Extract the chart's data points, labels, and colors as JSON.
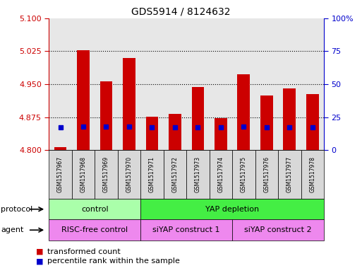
{
  "title": "GDS5914 / 8124632",
  "samples": [
    "GSM1517967",
    "GSM1517968",
    "GSM1517969",
    "GSM1517970",
    "GSM1517971",
    "GSM1517972",
    "GSM1517973",
    "GSM1517974",
    "GSM1517975",
    "GSM1517976",
    "GSM1517977",
    "GSM1517978"
  ],
  "bar_values": [
    4.806,
    5.027,
    4.957,
    5.01,
    4.876,
    4.882,
    4.944,
    4.873,
    4.972,
    4.924,
    4.94,
    4.927
  ],
  "bar_base": 4.8,
  "percentile_values": [
    17,
    18,
    18,
    18,
    17,
    17,
    17,
    17,
    18,
    17,
    17,
    17
  ],
  "left_ylim": [
    4.8,
    5.1
  ],
  "left_yticks": [
    4.8,
    4.875,
    4.95,
    5.025,
    5.1
  ],
  "right_ylim": [
    0,
    100
  ],
  "right_yticks": [
    0,
    25,
    50,
    75,
    100
  ],
  "right_yticklabels": [
    "0",
    "25",
    "50",
    "75",
    "100%"
  ],
  "bar_color": "#cc0000",
  "percentile_color": "#0000cc",
  "protocol_data": [
    [
      "control",
      0,
      3,
      "#aaffaa"
    ],
    [
      "YAP depletion",
      4,
      11,
      "#44ee44"
    ]
  ],
  "agent_data": [
    [
      "RISC-free control",
      0,
      3,
      "#ee88ee"
    ],
    [
      "siYAP construct 1",
      4,
      7,
      "#ee88ee"
    ],
    [
      "siYAP construct 2",
      8,
      11,
      "#ee88ee"
    ]
  ],
  "legend_red_label": "transformed count",
  "legend_blue_label": "percentile rank within the sample"
}
